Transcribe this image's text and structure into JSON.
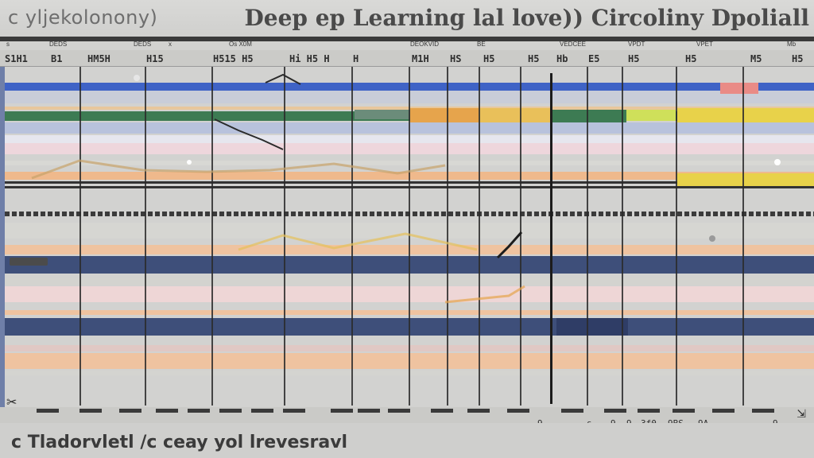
{
  "window": {
    "app_name": "c yljekolonony)",
    "document_title": "Deep ep Learning lal love)) Circoliny Dpoliall",
    "status_text": "c Tladorvletl /c ceay yol lrevesravl"
  },
  "header_labels": [
    "s",
    "DEDS",
    "DEDS",
    "x",
    "Os X0M",
    "DEOKVID",
    "BE",
    "VEDCEE",
    "VPDT",
    "VPET",
    "Mb"
  ],
  "ruler_labels": [
    "S1H1",
    "B1",
    "HM5H",
    "H15",
    "H515 H5",
    "Hi H5 H",
    "H",
    "M1H",
    "HS",
    "H5",
    "H5",
    "Hb",
    "E5",
    "H5",
    "H5",
    "M5",
    "H5"
  ],
  "lower_ruler_numbers": [
    "9",
    "s",
    "9",
    "9",
    "3f0.",
    "9BS.",
    "9A",
    "9"
  ],
  "colors": {
    "accent_blue": "#3f63c6",
    "navy": "#3e4f7a",
    "green": "#3d7b53",
    "amber": "#e6a44c",
    "yellow": "#e8d24a",
    "peach": "#efc3a0",
    "pink": "#eed6dc",
    "coral": "#e98b86"
  },
  "icons": {
    "cut": "scissors-icon",
    "resize": "resize-grip-icon"
  }
}
